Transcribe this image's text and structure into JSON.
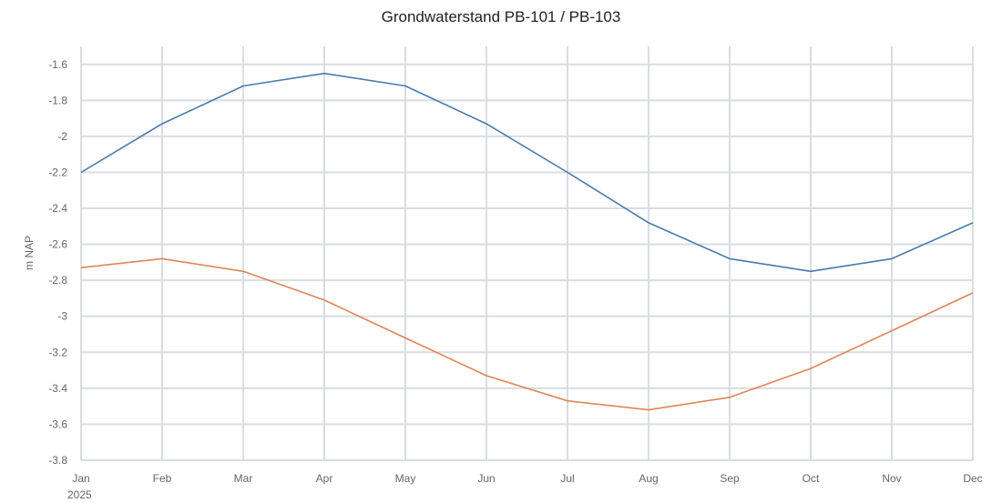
{
  "chart_data": {
    "type": "line",
    "title": "Grondwaterstand PB-101 / PB-103",
    "ylabel": "m NAP",
    "xlabel": "",
    "x_year_label": "2025",
    "categories": [
      "Jan",
      "Feb",
      "Mar",
      "Apr",
      "May",
      "Jun",
      "Jul",
      "Aug",
      "Sep",
      "Oct",
      "Nov",
      "Dec"
    ],
    "ylim": [
      -3.8,
      -1.5
    ],
    "yticks": [
      -3.8,
      -3.6,
      -3.4,
      -3.2,
      -3,
      -2.8,
      -2.6,
      -2.4,
      -2.2,
      -2,
      -1.8,
      -1.6
    ],
    "ytick_labels": [
      "-3.8",
      "-3.6",
      "-3.4",
      "-3.2",
      "-3",
      "-2.8",
      "-2.6",
      "-2.4",
      "-2.2",
      "-2",
      "-1.8",
      "-1.6"
    ],
    "grid": true,
    "legend": "none",
    "series": [
      {
        "color": "#4a7aab",
        "values": [
          -2.2,
          -1.93,
          -1.72,
          -1.65,
          -1.72,
          -1.93,
          -2.2,
          -2.48,
          -2.68,
          -2.75,
          -2.68,
          -2.48
        ]
      },
      {
        "color": "#de8558",
        "values": [
          -2.73,
          -2.68,
          -2.75,
          -2.91,
          -3.12,
          -3.33,
          -3.47,
          -3.52,
          -3.45,
          -3.29,
          -3.08,
          -2.87
        ]
      }
    ]
  }
}
